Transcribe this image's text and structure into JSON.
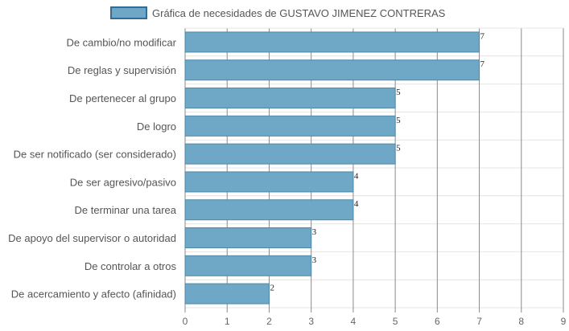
{
  "chart_data": {
    "type": "bar",
    "orientation": "horizontal",
    "title": "",
    "xlabel": "",
    "ylabel": "",
    "xlim": [
      0,
      9
    ],
    "x_ticks": [
      "0",
      "1",
      "2",
      "3",
      "4",
      "5",
      "6",
      "7",
      "8",
      "9"
    ],
    "grid": true,
    "legend_placement": "top-center",
    "categories": [
      "De cambio/no modificar",
      "De reglas y supervisión",
      "De pertenecer al grupo",
      "De logro",
      "De ser notificado (ser considerado)",
      "De ser agresivo/pasivo",
      "De terminar una tarea",
      "De apoyo del supervisor o autoridad",
      "De controlar a otros",
      "De acercamiento y afecto (afinidad)"
    ],
    "series": [
      {
        "name": "Gráfica de necesidades de GUSTAVO JIMENEZ CONTRERAS",
        "values": [
          7,
          7,
          5,
          5,
          5,
          4,
          4,
          3,
          3,
          2
        ],
        "labels": [
          "7",
          "7",
          "5",
          "5",
          "5",
          "4",
          "4",
          "3",
          "3",
          "2"
        ],
        "color": "#6fa8c7",
        "border_color": "#4f88a7"
      }
    ]
  }
}
